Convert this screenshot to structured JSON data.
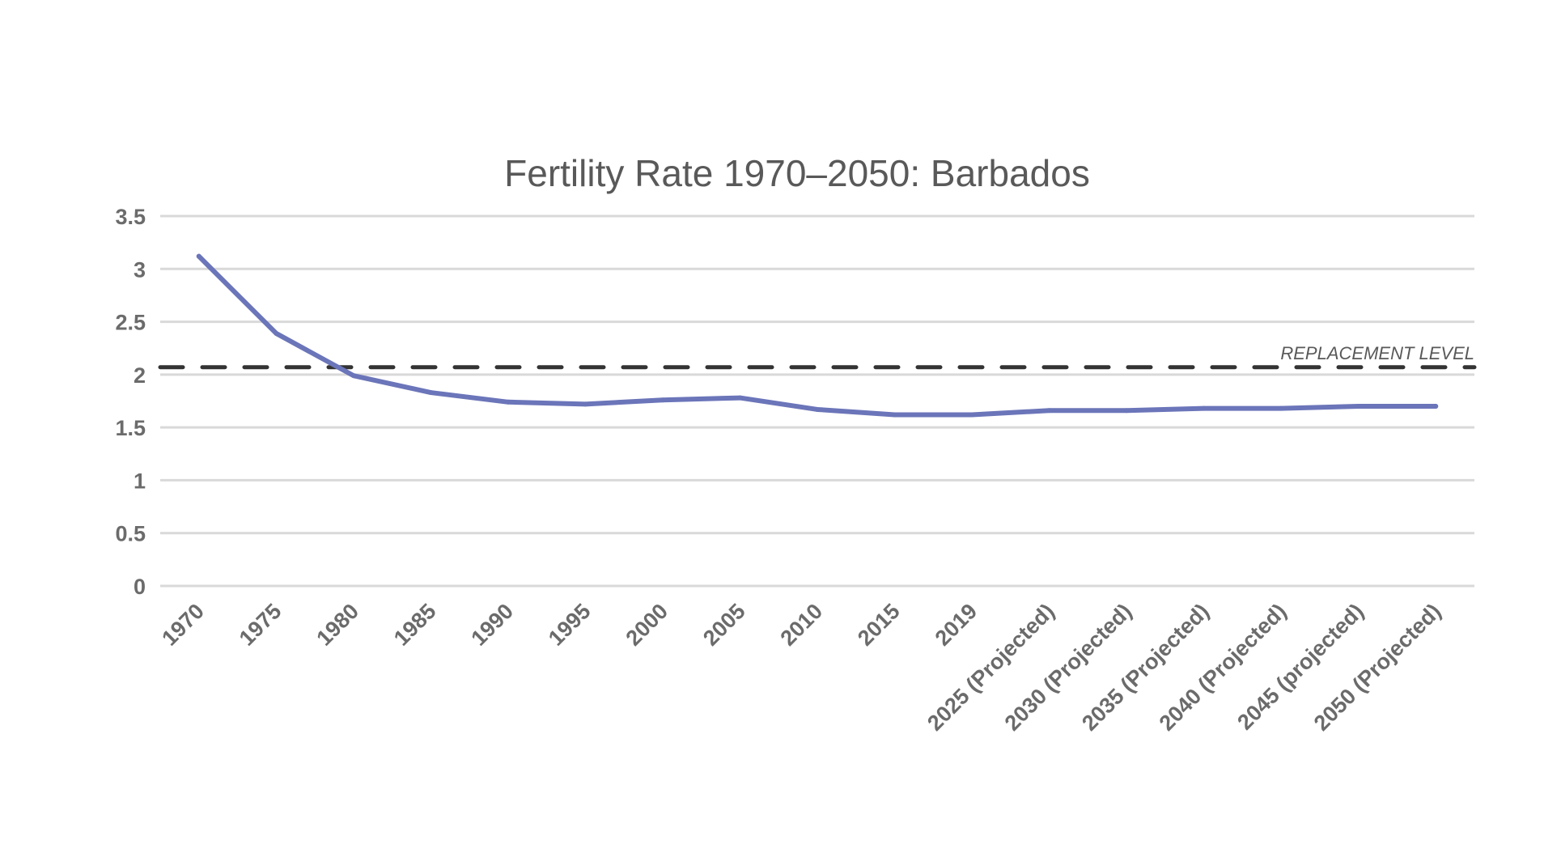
{
  "chart_data": {
    "type": "line",
    "title": "Fertility Rate 1970–2050: Barbados",
    "xlabel": "",
    "ylabel": "",
    "categories": [
      "1970",
      "1975",
      "1980",
      "1985",
      "1990",
      "1995",
      "2000",
      "2005",
      "2010",
      "2015",
      "2019",
      "2025 (Projected)",
      "2030 (Projected)",
      "2035 (Projected)",
      "2040 (Projected)",
      "2045 (projected)",
      "2050 (Projected)"
    ],
    "series": [
      {
        "values": [
          3.12,
          2.39,
          1.99,
          1.83,
          1.74,
          1.72,
          1.76,
          1.78,
          1.67,
          1.62,
          1.62,
          1.66,
          1.66,
          1.68,
          1.68,
          1.7,
          1.7
        ],
        "color": "#6b75b9"
      }
    ],
    "reference_line": {
      "label": "REPLACEMENT LEVEL",
      "value": 2.07,
      "color": "#333333",
      "style": "dashed"
    },
    "ylim": [
      0,
      3.5
    ],
    "yticks": [
      "0",
      "0.5",
      "1",
      "1.5",
      "2",
      "2.5",
      "3",
      "3.5"
    ],
    "grid": true,
    "gridline_color": "#d9d9d9",
    "legend": "none"
  }
}
